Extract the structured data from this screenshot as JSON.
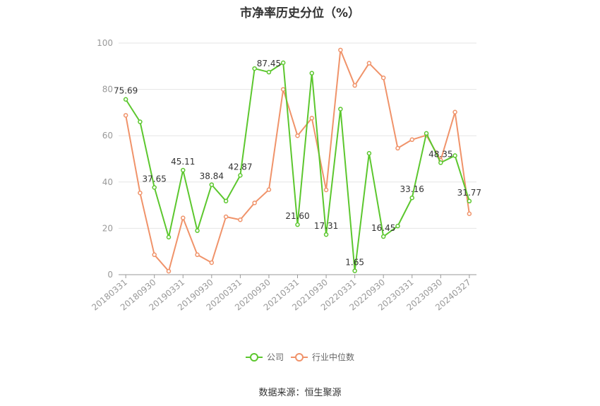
{
  "chart_data": {
    "type": "line",
    "title": "市净率历史分位（%）",
    "xlabel": "",
    "ylabel": "",
    "ylim": [
      0,
      100
    ],
    "yticks": [
      0,
      20,
      40,
      60,
      80,
      100
    ],
    "x_tick_labels": [
      "20180331",
      "20180930",
      "20190331",
      "20190930",
      "20200331",
      "20200930",
      "20210331",
      "20210930",
      "20220331",
      "20220930",
      "20230331",
      "20230930",
      "20240327"
    ],
    "x": [
      "20180331",
      "20180630",
      "20180930",
      "20181231",
      "20190331",
      "20190630",
      "20190930",
      "20191231",
      "20200331",
      "20200630",
      "20200930",
      "20201231",
      "20210331",
      "20210630",
      "20210930",
      "20211231",
      "20220331",
      "20220630",
      "20220930",
      "20221231",
      "20230331",
      "20230630",
      "20230930",
      "20231231",
      "20240327"
    ],
    "series": [
      {
        "name": "公司",
        "color": "#5cc72e",
        "values": [
          75.69,
          66,
          37.65,
          16.2,
          45.11,
          19,
          38.84,
          31.8,
          42.87,
          89,
          87.45,
          91.5,
          21.6,
          87,
          17.31,
          71.5,
          1.65,
          52.4,
          16.45,
          21,
          33.16,
          61,
          48.35,
          51.4,
          31.77
        ],
        "labels": {
          "0": "75.69",
          "2": "37.65",
          "4": "45.11",
          "6": "38.84",
          "8": "42.87",
          "10": "87.45",
          "12": "21.60",
          "14": "17.31",
          "16": "1.65",
          "18": "16.45",
          "20": "33.16",
          "22": "48.35",
          "24": "31.77"
        }
      },
      {
        "name": "行业中位数",
        "color": "#f0936a",
        "values": [
          68.8,
          35.3,
          8.6,
          1.5,
          24.5,
          8.6,
          5.2,
          25,
          23.7,
          31,
          36.7,
          80,
          60,
          67.6,
          36.6,
          97,
          81.7,
          91.3,
          85,
          54.6,
          58.3,
          60.2,
          49.4,
          70.2,
          26.3
        ]
      }
    ],
    "grid": true,
    "legend_position": "bottom"
  },
  "source_text": "数据来源：恒生聚源"
}
